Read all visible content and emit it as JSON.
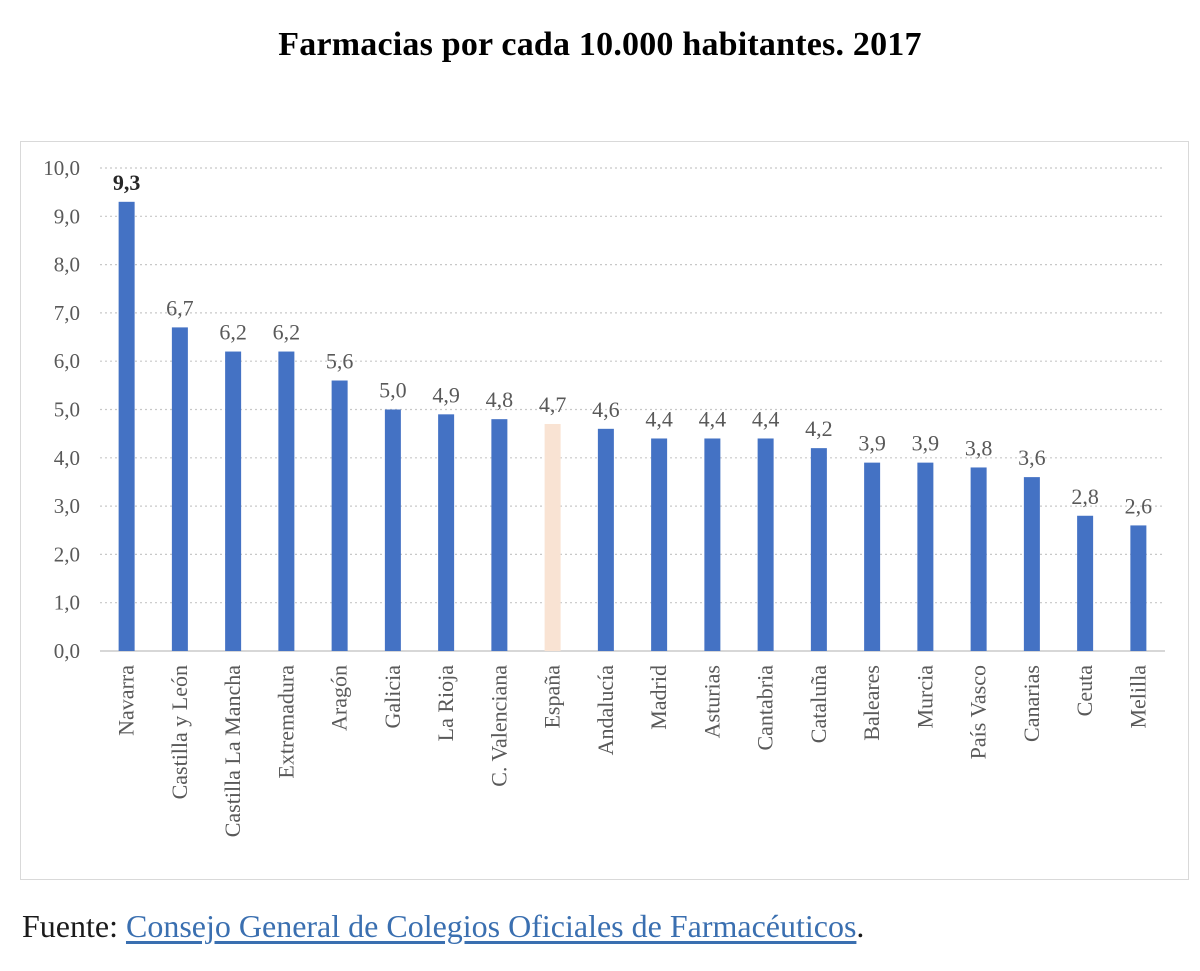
{
  "chart_data": {
    "type": "bar",
    "title": "Farmacias por cada 10.000 habitantes. 2017",
    "xlabel": "",
    "ylabel": "",
    "ylim": [
      0,
      10
    ],
    "y_ticks": [
      "0,0",
      "1,0",
      "2,0",
      "3,0",
      "4,0",
      "5,0",
      "6,0",
      "7,0",
      "8,0",
      "9,0",
      "10,0"
    ],
    "grid": true,
    "categories": [
      "Navarra",
      "Castilla y León",
      "Castilla La Mancha",
      "Extremadura",
      "Aragón",
      "Galicia",
      "La Rioja",
      "C. Valenciana",
      "España",
      "Andalucía",
      "Madrid",
      "Asturias",
      "Cantabria",
      "Cataluña",
      "Baleares",
      "Murcia",
      "País Vasco",
      "Canarias",
      "Ceuta",
      "Melilla"
    ],
    "values": [
      9.3,
      6.7,
      6.2,
      6.2,
      5.6,
      5.0,
      4.9,
      4.8,
      4.7,
      4.6,
      4.4,
      4.4,
      4.4,
      4.2,
      3.9,
      3.9,
      3.8,
      3.6,
      2.8,
      2.6
    ],
    "value_labels": [
      "9,3",
      "6,7",
      "6,2",
      "6,2",
      "5,6",
      "5,0",
      "4,9",
      "4,8",
      "4,7",
      "4,6",
      "4,4",
      "4,4",
      "4,4",
      "4,2",
      "3,9",
      "3,9",
      "3,8",
      "3,6",
      "2,8",
      "2,6"
    ],
    "highlight_category": "España",
    "bold_label_category": "Navarra",
    "colors": {
      "bar": "#4472c4",
      "highlight_bar": "#f9e3d3",
      "grid": "#c8c8c8",
      "text": "#595959"
    }
  },
  "source": {
    "prefix": "Fuente: ",
    "link_text": "Consejo General de Colegios Oficiales de Farmacéuticos",
    "suffix": "."
  }
}
